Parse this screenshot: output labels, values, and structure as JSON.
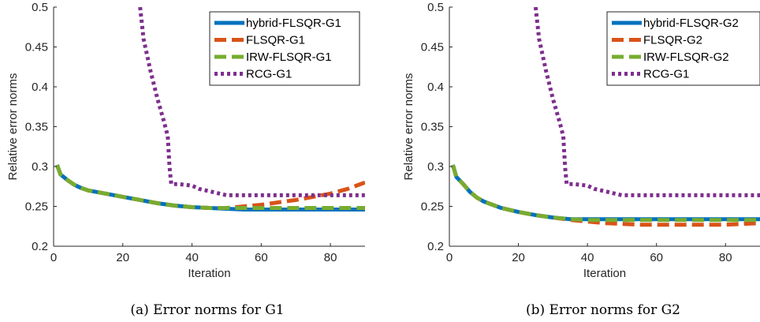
{
  "chart_data": [
    {
      "type": "line",
      "caption": "(a) Error norms for G1",
      "xlabel": "Iteration",
      "ylabel": "Relative error norms",
      "xlim": [
        0,
        90
      ],
      "ylim": [
        0.2,
        0.5
      ],
      "xticks": [
        "0",
        "20",
        "40",
        "60",
        "80"
      ],
      "yticks": [
        "0.2",
        "0.25",
        "0.3",
        "0.35",
        "0.4",
        "0.45",
        "0.5"
      ],
      "legend_position": "top-right",
      "series": [
        {
          "name": "hybrid-FLSQR-G1",
          "color": "#0072BD",
          "style": "solid",
          "x": [
            1,
            2,
            4,
            6,
            8,
            10,
            15,
            20,
            25,
            30,
            35,
            40,
            45,
            50,
            55,
            60,
            70,
            80,
            90
          ],
          "y": [
            0.302,
            0.29,
            0.283,
            0.277,
            0.273,
            0.27,
            0.266,
            0.262,
            0.258,
            0.254,
            0.251,
            0.249,
            0.248,
            0.247,
            0.246,
            0.246,
            0.246,
            0.246,
            0.246
          ]
        },
        {
          "name": "FLSQR-G1",
          "color": "#D95319",
          "style": "dashed",
          "x": [
            1,
            2,
            4,
            6,
            8,
            10,
            15,
            20,
            25,
            30,
            35,
            40,
            45,
            50,
            55,
            60,
            65,
            70,
            75,
            80,
            85,
            90
          ],
          "y": [
            0.302,
            0.29,
            0.283,
            0.277,
            0.273,
            0.27,
            0.266,
            0.262,
            0.258,
            0.254,
            0.251,
            0.249,
            0.248,
            0.248,
            0.25,
            0.252,
            0.255,
            0.258,
            0.262,
            0.266,
            0.272,
            0.28
          ]
        },
        {
          "name": "IRW-FLSQR-G1",
          "color": "#77AC30",
          "style": "dashed",
          "x": [
            1,
            2,
            4,
            6,
            8,
            10,
            15,
            20,
            25,
            30,
            35,
            40,
            45,
            50,
            55,
            60,
            70,
            80,
            90
          ],
          "y": [
            0.302,
            0.29,
            0.283,
            0.277,
            0.273,
            0.27,
            0.266,
            0.262,
            0.258,
            0.254,
            0.251,
            0.249,
            0.248,
            0.248,
            0.248,
            0.248,
            0.248,
            0.248,
            0.248
          ]
        },
        {
          "name": "RCG-G1",
          "color": "#7E2F8E",
          "style": "dotted",
          "x": [
            25,
            26,
            28,
            30,
            32,
            33,
            33.5,
            34,
            36,
            40,
            42,
            46,
            50,
            55,
            60,
            70,
            80,
            90
          ],
          "y": [
            0.5,
            0.46,
            0.42,
            0.385,
            0.355,
            0.338,
            0.3,
            0.278,
            0.278,
            0.276,
            0.272,
            0.268,
            0.264,
            0.264,
            0.264,
            0.264,
            0.264,
            0.264
          ]
        }
      ]
    },
    {
      "type": "line",
      "caption": "(b) Error norms for G2",
      "xlabel": "Iteration",
      "ylabel": "Relative error norms",
      "xlim": [
        0,
        90
      ],
      "ylim": [
        0.2,
        0.5
      ],
      "xticks": [
        "0",
        "20",
        "40",
        "60",
        "80"
      ],
      "yticks": [
        "0.2",
        "0.25",
        "0.3",
        "0.35",
        "0.4",
        "0.45",
        "0.5"
      ],
      "legend_position": "top-right",
      "series": [
        {
          "name": "hybrid-FLSQR-G2",
          "color": "#0072BD",
          "style": "solid",
          "x": [
            1,
            2,
            4,
            6,
            8,
            10,
            15,
            20,
            25,
            30,
            35,
            40,
            50,
            60,
            70,
            80,
            90
          ],
          "y": [
            0.302,
            0.287,
            0.278,
            0.268,
            0.261,
            0.256,
            0.248,
            0.243,
            0.239,
            0.236,
            0.234,
            0.234,
            0.234,
            0.234,
            0.234,
            0.234,
            0.234
          ]
        },
        {
          "name": "FLSQR-G2",
          "color": "#D95319",
          "style": "dashed",
          "x": [
            1,
            2,
            4,
            6,
            8,
            10,
            15,
            20,
            25,
            30,
            35,
            40,
            45,
            50,
            55,
            60,
            65,
            70,
            75,
            80,
            85,
            90
          ],
          "y": [
            0.302,
            0.287,
            0.278,
            0.268,
            0.261,
            0.256,
            0.248,
            0.243,
            0.239,
            0.236,
            0.233,
            0.231,
            0.229,
            0.228,
            0.227,
            0.227,
            0.227,
            0.227,
            0.227,
            0.227,
            0.228,
            0.229
          ]
        },
        {
          "name": "IRW-FLSQR-G2",
          "color": "#77AC30",
          "style": "dashed",
          "x": [
            1,
            2,
            4,
            6,
            8,
            10,
            15,
            20,
            25,
            30,
            35,
            40,
            50,
            60,
            70,
            80,
            90
          ],
          "y": [
            0.302,
            0.287,
            0.278,
            0.268,
            0.261,
            0.256,
            0.248,
            0.243,
            0.239,
            0.236,
            0.234,
            0.233,
            0.233,
            0.233,
            0.233,
            0.233,
            0.233
          ]
        },
        {
          "name": "RCG-G1",
          "color": "#7E2F8E",
          "style": "dotted",
          "x": [
            25,
            26,
            28,
            30,
            32,
            33,
            33.5,
            34,
            36,
            40,
            42,
            46,
            50,
            55,
            60,
            70,
            80,
            90
          ],
          "y": [
            0.5,
            0.46,
            0.42,
            0.385,
            0.355,
            0.338,
            0.3,
            0.278,
            0.278,
            0.276,
            0.272,
            0.268,
            0.264,
            0.264,
            0.264,
            0.264,
            0.264,
            0.264
          ]
        }
      ]
    }
  ]
}
